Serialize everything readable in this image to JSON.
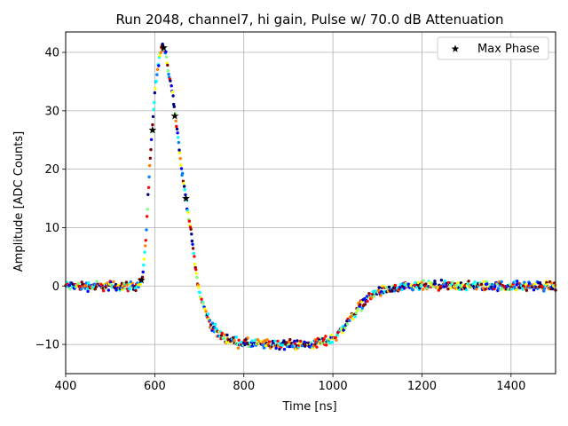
{
  "chart_data": {
    "type": "scatter",
    "title": "Run 2048, channel7, hi gain, Pulse w/ 70.0 dB Attenuation",
    "xlabel": "Time [ns]",
    "ylabel": "Amplitude [ADC Counts]",
    "xlim": [
      400,
      1500
    ],
    "ylim": [
      -15,
      43.5
    ],
    "xticks": [
      400,
      600,
      800,
      1000,
      1200,
      1400
    ],
    "yticks": [
      -10,
      0,
      10,
      20,
      30,
      40
    ],
    "grid": true,
    "legend": {
      "placement": "top-right",
      "entries": [
        "Max Phase"
      ]
    },
    "waveform": {
      "x": [
        400,
        440,
        480,
        520,
        560,
        572,
        580,
        590,
        600,
        610,
        615,
        620,
        625,
        630,
        640,
        650,
        660,
        670,
        680,
        690,
        700,
        710,
        720,
        730,
        740,
        750,
        760,
        780,
        800,
        850,
        900,
        950,
        980,
        1000,
        1020,
        1040,
        1060,
        1080,
        1100,
        1150,
        1200,
        1300,
        1400,
        1500
      ],
      "y": [
        0,
        0,
        0,
        0,
        0,
        1,
        8,
        22,
        33,
        39,
        40.5,
        41,
        40,
        37,
        33,
        27,
        20,
        15,
        10,
        4,
        -1,
        -3.5,
        -5.5,
        -7,
        -8,
        -8.5,
        -9,
        -9.5,
        -9.8,
        -10,
        -10,
        -10,
        -9.5,
        -9,
        -7.5,
        -5.5,
        -3.5,
        -2,
        -1,
        -0.4,
        0,
        0,
        0,
        0
      ],
      "noise_amplitude": 0.8
    },
    "series": [
      {
        "name": "Max Phase",
        "marker": "star",
        "x": [
          570,
          595,
          620,
          645,
          670
        ],
        "y": [
          1,
          26.7,
          40.8,
          29.1,
          15
        ]
      }
    ],
    "colormap": [
      "#00007f",
      "#0000ff",
      "#007fff",
      "#00ffff",
      "#7fff7f",
      "#ffff00",
      "#ff7f00",
      "#ff0000",
      "#7f0000"
    ]
  }
}
